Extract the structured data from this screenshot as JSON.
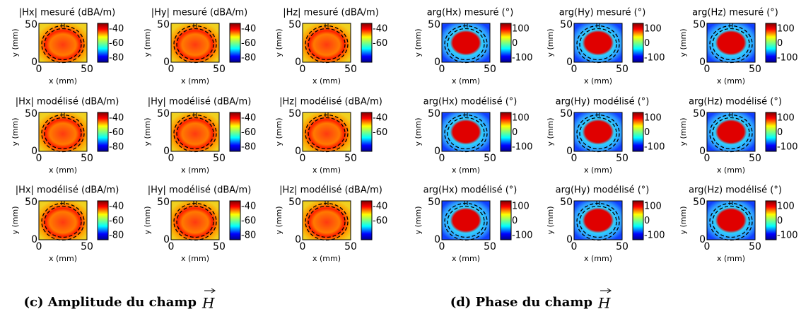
{
  "figure": {
    "groups": [
      {
        "caption": "(c) Amplitude du champ",
        "caption_symbol": "H",
        "kind": "amplitude",
        "panels": [
          {
            "title": "|Hx| mesuré (dBA/m)",
            "xlabel": "x (mm)",
            "ylabel": "y (mm)",
            "xticks": [
              0,
              50
            ],
            "yticks": [
              0,
              50
            ],
            "colorbar_ticks": [
              -40,
              -60,
              -80
            ]
          },
          {
            "title": "|Hy| mesuré (dBA/m)",
            "xlabel": "x (mm)",
            "ylabel": "y (mm)",
            "xticks": [
              0,
              50
            ],
            "yticks": [
              0,
              50
            ],
            "colorbar_ticks": [
              -40,
              -60,
              -80
            ]
          },
          {
            "title": "|Hz| mesuré (dBA/m)",
            "xlabel": "x (mm)",
            "ylabel": "y (mm)",
            "xticks": [
              0,
              50
            ],
            "yticks": [
              0,
              50
            ],
            "colorbar_ticks": [
              -40,
              -60
            ]
          },
          {
            "title": "|Hx| modélisé (dBA/m)",
            "xlabel": "x (mm)",
            "ylabel": "y (mm)",
            "xticks": [
              0,
              50
            ],
            "yticks": [
              0,
              50
            ],
            "colorbar_ticks": [
              -40,
              -60,
              -80
            ]
          },
          {
            "title": "|Hy| modélisé (dBA/m)",
            "xlabel": "x (mm)",
            "ylabel": "y (mm)",
            "xticks": [
              0,
              50
            ],
            "yticks": [
              0,
              50
            ],
            "colorbar_ticks": [
              -40,
              -60,
              -80
            ]
          },
          {
            "title": "|Hz| modélisé (dBA/m)",
            "xlabel": "x (mm)",
            "ylabel": "y (mm)",
            "xticks": [
              0,
              50
            ],
            "yticks": [
              0,
              50
            ],
            "colorbar_ticks": [
              -40,
              -60
            ]
          },
          {
            "title": "|Hx| modélisé (dBA/m)",
            "xlabel": "x (mm)",
            "ylabel": "y (mm)",
            "xticks": [
              0,
              50
            ],
            "yticks": [
              0,
              50
            ],
            "colorbar_ticks": [
              -40,
              -60,
              -80
            ]
          },
          {
            "title": "|Hy| modélisé (dBA/m)",
            "xlabel": "x (mm)",
            "ylabel": "y (mm)",
            "xticks": [
              0,
              50
            ],
            "yticks": [
              0,
              50
            ],
            "colorbar_ticks": [
              -40,
              -60,
              -80
            ]
          },
          {
            "title": "|Hz| modélisé (dBA/m)",
            "xlabel": "x (mm)",
            "ylabel": "y (mm)",
            "xticks": [
              0,
              50
            ],
            "yticks": [
              0,
              50
            ],
            "colorbar_ticks": [
              -40,
              -60
            ]
          }
        ]
      },
      {
        "caption": "(d) Phase du champ",
        "caption_symbol": "H",
        "kind": "phase",
        "panels": [
          {
            "title": "arg(Hx) mesuré (°)",
            "xlabel": "x (mm)",
            "ylabel": "y (mm)",
            "xticks": [
              0,
              50
            ],
            "yticks": [
              0,
              50
            ],
            "colorbar_ticks": [
              100,
              0,
              -100
            ]
          },
          {
            "title": "arg(Hy) mesuré (°)",
            "xlabel": "x (mm)",
            "ylabel": "y (mm)",
            "xticks": [
              0,
              50
            ],
            "yticks": [
              0,
              50
            ],
            "colorbar_ticks": [
              100,
              0,
              -100
            ]
          },
          {
            "title": "arg(Hz) mesuré (°)",
            "xlabel": "x (mm)",
            "ylabel": "y (mm)",
            "xticks": [
              0,
              50
            ],
            "yticks": [
              0,
              50
            ],
            "colorbar_ticks": [
              100,
              0,
              -100
            ]
          },
          {
            "title": "arg(Hx) modélisé (°)",
            "xlabel": "x (mm)",
            "ylabel": "y (mm)",
            "xticks": [
              0,
              50
            ],
            "yticks": [
              0,
              50
            ],
            "colorbar_ticks": [
              100,
              0,
              -100
            ]
          },
          {
            "title": "arg(Hy) modélisé (°)",
            "xlabel": "x (mm)",
            "ylabel": "y (mm)",
            "xticks": [
              0,
              50
            ],
            "yticks": [
              0,
              50
            ],
            "colorbar_ticks": [
              100,
              0,
              -100
            ]
          },
          {
            "title": "arg(Hz) modélisé (°)",
            "xlabel": "x (mm)",
            "ylabel": "y (mm)",
            "xticks": [
              0,
              50
            ],
            "yticks": [
              0,
              50
            ],
            "colorbar_ticks": [
              100,
              0,
              -100
            ]
          },
          {
            "title": "arg(Hx) modélisé (°)",
            "xlabel": "x (mm)",
            "ylabel": "y (mm)",
            "xticks": [
              0,
              50
            ],
            "yticks": [
              0,
              50
            ],
            "colorbar_ticks": [
              100,
              0,
              -100
            ]
          },
          {
            "title": "arg(Hy) modélisé (°)",
            "xlabel": "x (mm)",
            "ylabel": "y (mm)",
            "xticks": [
              0,
              50
            ],
            "yticks": [
              0,
              50
            ],
            "colorbar_ticks": [
              100,
              0,
              -100
            ]
          },
          {
            "title": "arg(Hz) modélisé (°)",
            "xlabel": "x (mm)",
            "ylabel": "y (mm)",
            "xticks": [
              0,
              50
            ],
            "yticks": [
              0,
              50
            ],
            "colorbar_ticks": [
              100,
              0,
              -100
            ]
          }
        ]
      }
    ]
  }
}
